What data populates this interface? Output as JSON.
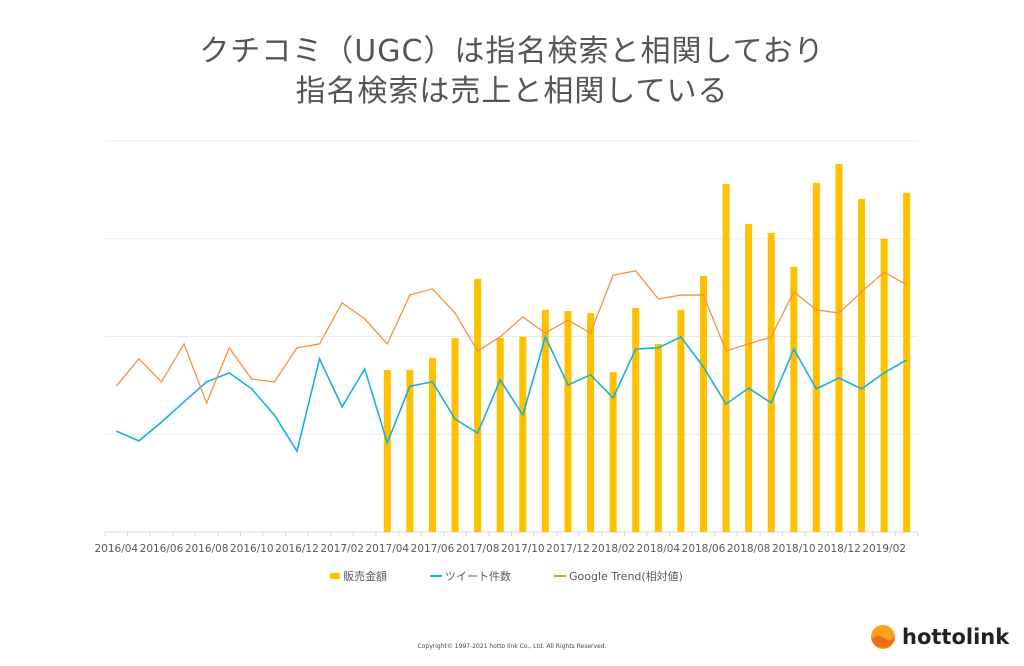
{
  "title_line1": "クチコミ（UGC）は指名検索と相関しており",
  "title_line2": "指名検索は売上と相関している",
  "copyright": "Copyright© 1997-2021 hotto link Co., Ltd. All Rights Reserved.",
  "logo_text": "hottolink",
  "chart_data": {
    "type": "bar+line",
    "title": "",
    "xlabel": "",
    "ylabel": "",
    "ylim": [
      0,
      100
    ],
    "grid": true,
    "legend_placement": "bottom",
    "categories": [
      "2016/04",
      "2016/05",
      "2016/06",
      "2016/07",
      "2016/08",
      "2016/09",
      "2016/10",
      "2016/11",
      "2016/12",
      "2017/01",
      "2017/02",
      "2017/03",
      "2017/04",
      "2017/05",
      "2017/06",
      "2017/07",
      "2017/08",
      "2017/09",
      "2017/10",
      "2017/11",
      "2017/12",
      "2018/01",
      "2018/02",
      "2018/03",
      "2018/04",
      "2018/05",
      "2018/06",
      "2018/07",
      "2018/08",
      "2018/09",
      "2018/10",
      "2018/11",
      "2018/12",
      "2019/01",
      "2019/02",
      "2019/03"
    ],
    "tick_labels": [
      "2016/04",
      "2016/06",
      "2016/08",
      "2016/10",
      "2016/12",
      "2017/02",
      "2017/04",
      "2017/06",
      "2017/08",
      "2017/10",
      "2017/12",
      "2018/02",
      "2018/04",
      "2018/06",
      "2018/08",
      "2018/10",
      "2018/12",
      "2019/02"
    ],
    "series": [
      {
        "name": "販売金額",
        "type": "bar",
        "color": "#FFC000",
        "values": [
          null,
          null,
          null,
          null,
          null,
          null,
          null,
          null,
          null,
          null,
          null,
          null,
          41.4,
          41.4,
          44.5,
          49.6,
          64.7,
          49.6,
          49.9,
          56.8,
          56.5,
          56.0,
          40.9,
          57.3,
          48.1,
          56.8,
          65.5,
          89.0,
          78.8,
          76.5,
          67.8,
          89.3,
          94.1,
          85.2,
          75.0,
          86.7
        ]
      },
      {
        "name": "ツイート件数",
        "type": "line",
        "color": "#1AB0DC",
        "values": [
          25.8,
          23.3,
          28.1,
          33.3,
          38.4,
          40.7,
          36.6,
          29.9,
          20.7,
          44.3,
          32.0,
          41.7,
          22.8,
          37.3,
          38.4,
          28.9,
          25.3,
          38.9,
          29.9,
          49.9,
          37.6,
          40.2,
          34.3,
          46.8,
          47.1,
          49.9,
          42.2,
          32.7,
          36.8,
          33.0,
          46.8,
          36.6,
          39.4,
          36.6,
          40.7,
          44.0
        ]
      },
      {
        "name": "Google Trend(相対値)",
        "type": "line",
        "color": "#F5923E",
        "values": [
          37.3,
          44.3,
          38.4,
          48.1,
          33.0,
          47.1,
          39.1,
          38.4,
          47.1,
          48.1,
          58.6,
          54.5,
          48.1,
          60.6,
          62.2,
          56.0,
          46.3,
          49.9,
          55.0,
          50.9,
          54.2,
          50.9,
          65.7,
          66.8,
          59.6,
          60.6,
          60.6,
          46.3,
          48.1,
          49.9,
          61.4,
          56.8,
          56.0,
          61.4,
          66.5,
          63.2
        ]
      }
    ]
  }
}
